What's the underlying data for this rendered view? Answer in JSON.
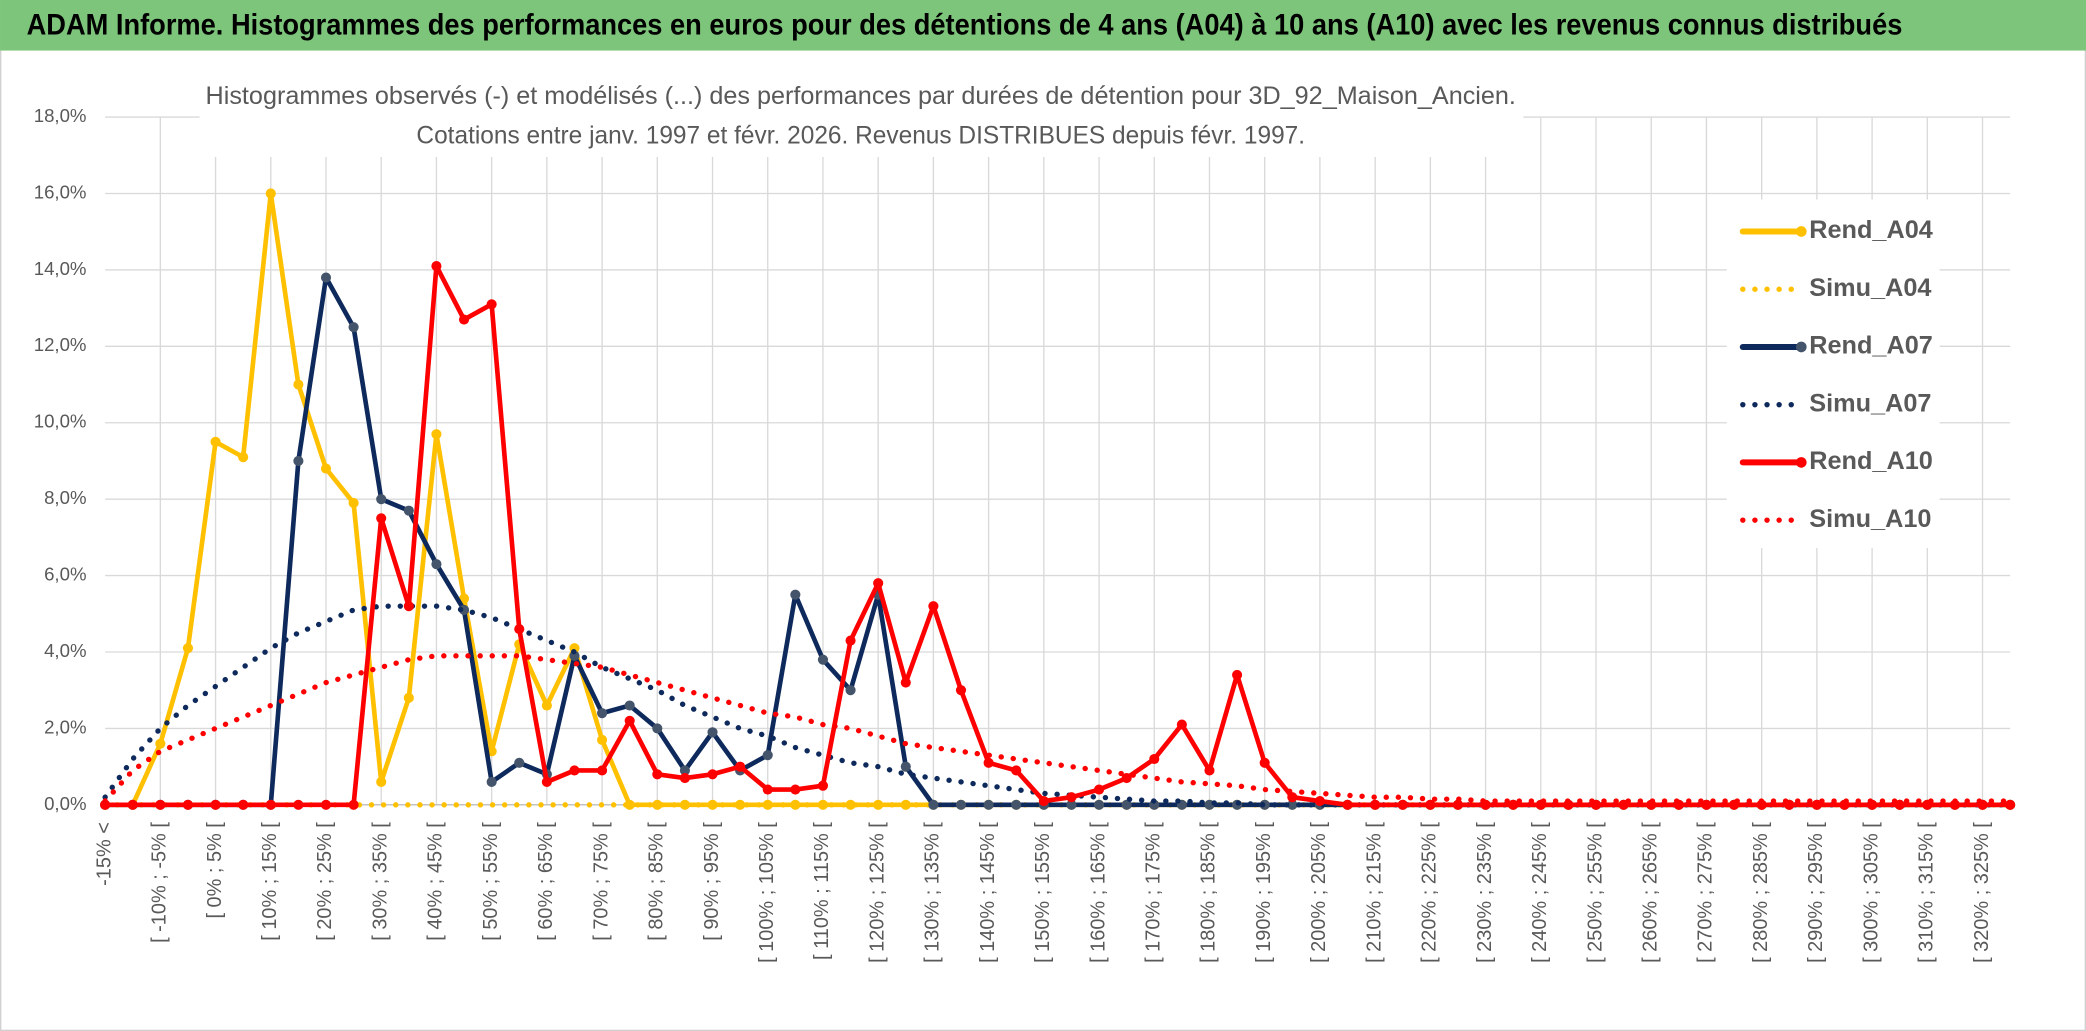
{
  "header": {
    "title": "ADAM Informe. Histogrammes des performances en euros pour des détentions de 4 ans (A04) à 10 ans (A10) avec les revenus connus distribués"
  },
  "chart_data": {
    "type": "line",
    "title": "Histogrammes observés (-) et modélisés (...) des performances par durées de détention pour 3D_92_Maison_Ancien.",
    "subtitle": "Cotations entre janv. 1997 et févr. 2026. Revenus DISTRIBUES depuis févr. 1997.",
    "categories": [
      "-15% <",
      null,
      "[ -10% ; -5% [",
      null,
      "[ 0% ; 5% [",
      null,
      "[ 10% ; 15% [",
      null,
      "[ 20% ; 25% [",
      null,
      "[ 30% ; 35% [",
      null,
      "[ 40% ; 45% [",
      null,
      "[ 50% ; 55% [",
      null,
      "[ 60% ; 65% [",
      null,
      "[ 70% ; 75% [",
      null,
      "[ 80% ; 85% [",
      null,
      "[ 90% ; 95% [",
      null,
      "[ 100% ; 105% [",
      null,
      "[ 110% ; 115% [",
      null,
      "[ 120% ; 125% [",
      null,
      "[ 130% ; 135% [",
      null,
      "[ 140% ; 145% [",
      null,
      "[ 150% ; 155% [",
      null,
      "[ 160% ; 165% [",
      null,
      "[ 170% ; 175% [",
      null,
      "[ 180% ; 185% [",
      null,
      "[ 190% ; 195% [",
      null,
      "[ 200% ; 205% [",
      null,
      "[ 210% ; 215% [",
      null,
      "[ 220% ; 225% [",
      null,
      "[ 230% ; 235% [",
      null,
      "[ 240% ; 245% [",
      null,
      "[ 250% ; 255% [",
      null,
      "[ 260% ; 265% [",
      null,
      "[ 270% ; 275% [",
      null,
      "[ 280% ; 285% [",
      null,
      "[ 290% ; 295% [",
      null,
      "[ 300% ; 305% [",
      null,
      "[ 310% ; 315% [",
      null,
      "[ 320% ; 325% [",
      null
    ],
    "series": [
      {
        "name": "Rend_A04",
        "color": "#FFC000",
        "style": "solid",
        "marker_color": "#FFC000",
        "values": [
          0,
          0,
          1.6,
          4.1,
          9.5,
          9.1,
          16.0,
          11.0,
          8.8,
          7.9,
          0.6,
          2.8,
          9.7,
          5.4,
          1.4,
          4.2,
          2.6,
          4.1,
          1.7,
          0,
          0,
          0,
          0,
          0,
          0,
          0,
          0,
          0,
          0,
          0,
          0,
          0,
          0,
          0,
          0,
          0,
          0,
          0,
          0,
          0,
          0,
          0,
          0,
          0,
          0,
          0,
          0,
          0,
          0,
          0,
          0,
          0,
          0,
          0,
          0,
          0,
          0,
          0,
          0,
          0,
          0,
          0,
          0,
          0,
          0,
          0,
          0,
          0,
          0,
          0
        ]
      },
      {
        "name": "Simu_A04",
        "color": "#FFC000",
        "style": "dotted",
        "values": [
          0,
          0,
          0,
          0,
          0,
          0,
          0,
          0,
          0,
          0,
          0,
          0,
          0,
          0,
          0,
          0,
          0,
          0,
          0,
          0,
          0,
          0,
          0,
          0,
          0,
          0,
          0,
          0,
          0,
          0,
          0,
          0,
          0,
          0,
          0,
          0,
          0,
          0,
          0,
          0,
          0,
          0,
          0,
          0,
          0,
          0,
          0,
          0,
          0,
          0,
          0,
          0,
          0,
          0,
          0,
          0,
          0,
          0,
          0,
          0,
          0,
          0,
          0,
          0,
          0,
          0,
          0,
          0,
          0,
          0
        ]
      },
      {
        "name": "Rend_A07",
        "color": "#0E2A5C",
        "style": "solid",
        "marker_color": "#44546A",
        "values": [
          0,
          0,
          0,
          0,
          0,
          0,
          0,
          9.0,
          13.8,
          12.5,
          8.0,
          7.7,
          6.3,
          5.1,
          0.6,
          1.1,
          0.8,
          3.9,
          2.4,
          2.6,
          2.0,
          0.9,
          1.9,
          0.9,
          1.3,
          5.5,
          3.8,
          3.0,
          5.5,
          1.0,
          0,
          0,
          0,
          0,
          0,
          0,
          0,
          0,
          0,
          0,
          0,
          0,
          0,
          0,
          0,
          0,
          0,
          0,
          0,
          0,
          0,
          0,
          0,
          0,
          0,
          0,
          0,
          0,
          0,
          0,
          0,
          0,
          0,
          0,
          0,
          0,
          0,
          0,
          0,
          0
        ]
      },
      {
        "name": "Simu_A07",
        "color": "#0E2A5C",
        "style": "dotted",
        "values": [
          0.2,
          1.2,
          2.0,
          2.6,
          3.1,
          3.6,
          4.1,
          4.5,
          4.8,
          5.1,
          5.2,
          5.2,
          5.2,
          5.1,
          4.9,
          4.6,
          4.3,
          4.0,
          3.6,
          3.3,
          3.0,
          2.6,
          2.3,
          2.0,
          1.8,
          1.5,
          1.3,
          1.1,
          1.0,
          0.8,
          0.7,
          0.6,
          0.5,
          0.4,
          0.3,
          0.25,
          0.2,
          0.15,
          0.1,
          0.1,
          0.05,
          0.05,
          0,
          0,
          0,
          0,
          0,
          0,
          0,
          0,
          0,
          0,
          0,
          0,
          0,
          0,
          0,
          0,
          0,
          0,
          0,
          0,
          0,
          0,
          0,
          0,
          0,
          0,
          0,
          0
        ]
      },
      {
        "name": "Rend_A10",
        "color": "#FF0000",
        "style": "solid",
        "marker_color": "#FF0000",
        "values": [
          0,
          0,
          0,
          0,
          0,
          0,
          0,
          0,
          0,
          0,
          7.5,
          5.2,
          14.1,
          12.7,
          13.1,
          4.6,
          0.6,
          0.9,
          0.9,
          2.2,
          0.8,
          0.7,
          0.8,
          1.0,
          0.4,
          0.4,
          0.5,
          4.3,
          5.8,
          3.2,
          5.2,
          3.0,
          1.1,
          0.9,
          0.1,
          0.2,
          0.4,
          0.7,
          1.2,
          2.1,
          0.9,
          3.4,
          1.1,
          0.2,
          0.1,
          0,
          0,
          0,
          0,
          0,
          0,
          0,
          0,
          0,
          0,
          0,
          0,
          0,
          0,
          0,
          0,
          0,
          0,
          0,
          0,
          0,
          0,
          0,
          0,
          0
        ]
      },
      {
        "name": "Simu_A10",
        "color": "#FF0000",
        "style": "dotted",
        "values": [
          0.1,
          0.9,
          1.4,
          1.7,
          2.0,
          2.3,
          2.6,
          2.9,
          3.2,
          3.4,
          3.6,
          3.8,
          3.9,
          3.9,
          3.9,
          3.9,
          3.8,
          3.7,
          3.6,
          3.4,
          3.2,
          3.0,
          2.8,
          2.6,
          2.4,
          2.3,
          2.1,
          2.0,
          1.8,
          1.6,
          1.5,
          1.4,
          1.3,
          1.2,
          1.1,
          1.0,
          0.9,
          0.8,
          0.7,
          0.6,
          0.55,
          0.5,
          0.4,
          0.35,
          0.3,
          0.25,
          0.2,
          0.2,
          0.15,
          0.15,
          0.1,
          0.1,
          0.1,
          0.1,
          0.1,
          0.1,
          0.1,
          0.1,
          0.1,
          0.1,
          0.1,
          0.1,
          0.1,
          0.1,
          0.1,
          0.1,
          0.1,
          0.1,
          0.1,
          0.1
        ]
      }
    ],
    "ylim": [
      0,
      18
    ],
    "yticks": [
      {
        "value": 0,
        "label": "0,0%"
      },
      {
        "value": 2,
        "label": "2,0%"
      },
      {
        "value": 4,
        "label": "4,0%"
      },
      {
        "value": 6,
        "label": "6,0%"
      },
      {
        "value": 8,
        "label": "8,0%"
      },
      {
        "value": 10,
        "label": "10,0%"
      },
      {
        "value": 12,
        "label": "12,0%"
      },
      {
        "value": 14,
        "label": "14,0%"
      },
      {
        "value": 16,
        "label": "16,0%"
      },
      {
        "value": 18,
        "label": "18,0%"
      }
    ],
    "grid": true,
    "legend": "right"
  }
}
